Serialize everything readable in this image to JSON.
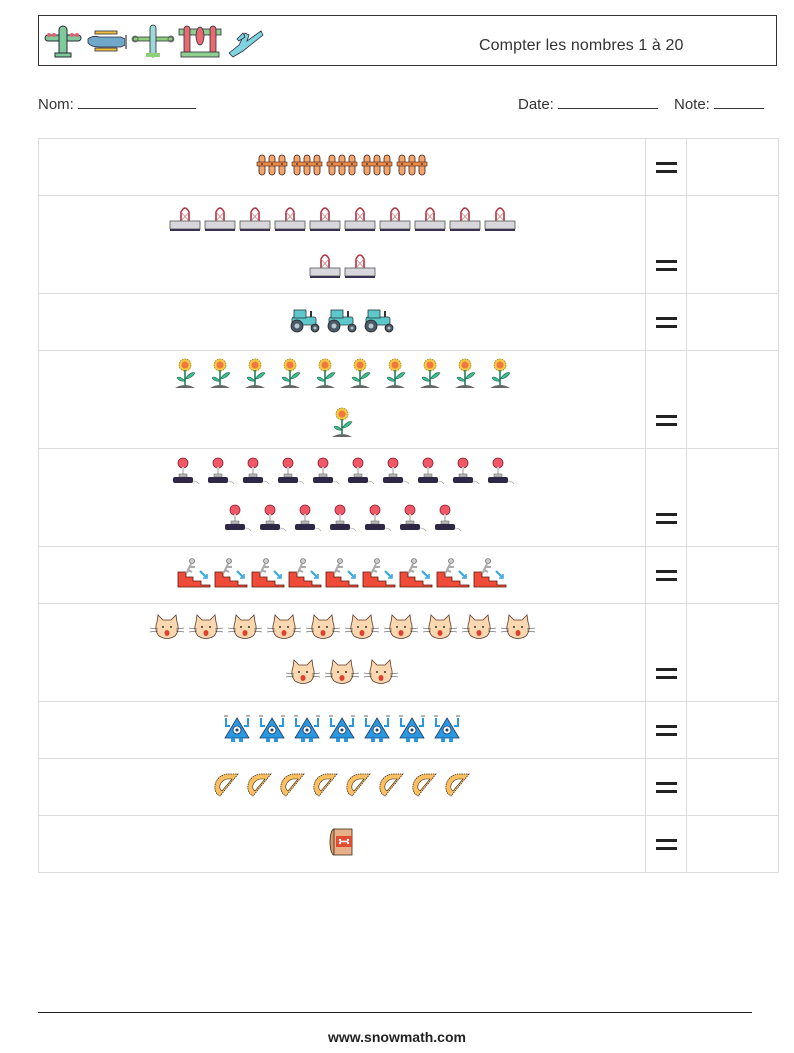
{
  "header": {
    "title": "Compter les nombres 1 à 20",
    "icons": [
      "airplane-green-icon",
      "biplane-blue-icon",
      "propeller-plane-icon",
      "twin-engine-plane-icon",
      "jet-plane-icon"
    ]
  },
  "meta": {
    "name_label": "Nom:",
    "date_label": "Date:",
    "note_label": "Note:"
  },
  "rows": [
    {
      "item": "fence",
      "icon": "fence-icon",
      "count": 5,
      "lines": [
        5
      ],
      "equals": "="
    },
    {
      "item": "binder clip",
      "icon": "binder-clip-icon",
      "count": 12,
      "lines": [
        10,
        2
      ],
      "equals": "="
    },
    {
      "item": "tractor",
      "icon": "tractor-icon",
      "count": 3,
      "lines": [
        3
      ],
      "equals": "="
    },
    {
      "item": "sunflower",
      "icon": "sunflower-icon",
      "count": 11,
      "lines": [
        10,
        1
      ],
      "equals": "="
    },
    {
      "item": "joystick",
      "icon": "joystick-icon",
      "count": 17,
      "lines": [
        10,
        7
      ],
      "equals": "="
    },
    {
      "item": "stairs",
      "icon": "stairs-down-icon",
      "count": 9,
      "lines": [
        9
      ],
      "equals": "="
    },
    {
      "item": "cat",
      "icon": "cat-face-icon",
      "count": 13,
      "lines": [
        10,
        3
      ],
      "equals": "="
    },
    {
      "item": "robot",
      "icon": "robot-icon",
      "count": 7,
      "lines": [
        7
      ],
      "equals": "="
    },
    {
      "item": "protractor",
      "icon": "protractor-icon",
      "count": 8,
      "lines": [
        8
      ],
      "equals": "="
    },
    {
      "item": "pet food can",
      "icon": "pet-food-can-icon",
      "count": 1,
      "lines": [
        1
      ],
      "equals": "="
    }
  ],
  "footer": {
    "url": "www.snowmath.com"
  }
}
